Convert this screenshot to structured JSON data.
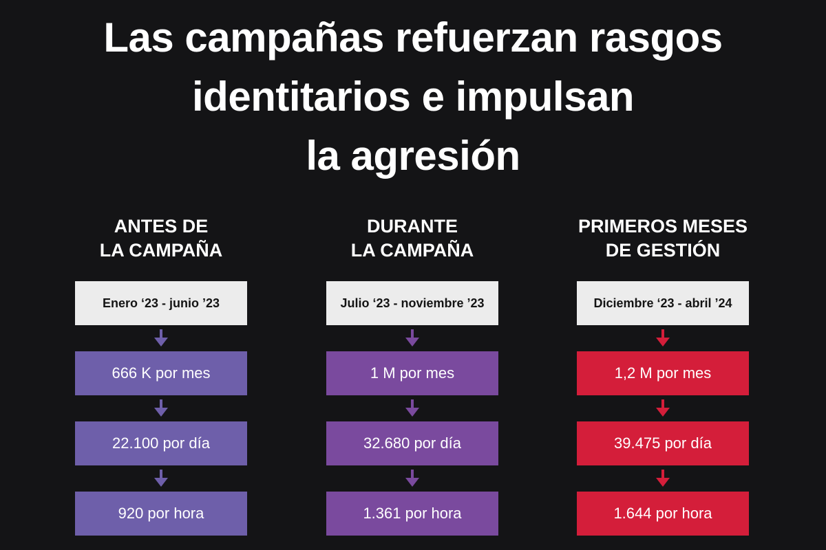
{
  "title": {
    "lines": [
      "Las campañas refuerzan rasgos",
      "identitarios e impulsan",
      "la agresión"
    ]
  },
  "columns": [
    {
      "heading": [
        "ANTES DE",
        "LA CAMPAÑA"
      ],
      "period": "Enero ‘23 - junio ’23",
      "color": "#6e5faa",
      "stats": [
        "666 K por mes",
        "22.100 por día",
        "920 por hora"
      ]
    },
    {
      "heading": [
        "DURANTE",
        "LA CAMPAÑA"
      ],
      "period": "Julio ‘23 - noviembre ’23",
      "color": "#7a4a9e",
      "stats": [
        "1 M por mes",
        "32.680 por día",
        "1.361 por hora"
      ]
    },
    {
      "heading": [
        "PRIMEROS MESES",
        "DE GESTIÓN"
      ],
      "period": "Diciembre ‘23 - abril ’24",
      "color": "#d41e3a",
      "stats": [
        "1,2 M por mes",
        "39.475 por día",
        "1.644 por hora"
      ]
    }
  ]
}
